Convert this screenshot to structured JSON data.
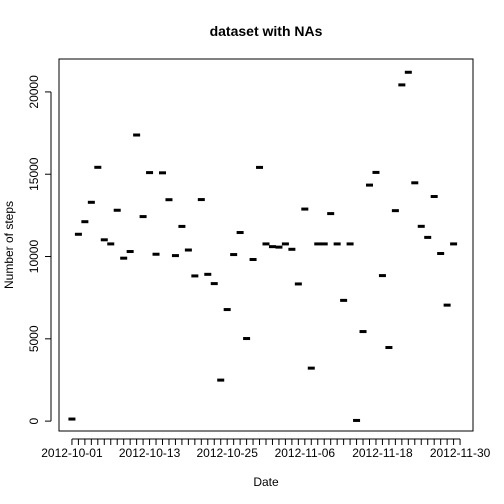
{
  "chart_data": {
    "type": "scatter",
    "title": "dataset with NAs",
    "xlabel": "Date",
    "ylabel": "Number of steps",
    "x_start_date": "2012-10-01",
    "x_end_date": "2012-11-30",
    "xlim": [
      "2012-09-29",
      "2012-12-02"
    ],
    "ylim": [
      -600,
      22000
    ],
    "x_tick_labels": [
      "2012-10-01",
      "2012-10-13",
      "2012-10-25",
      "2012-11-06",
      "2012-11-18",
      "2012-11-30"
    ],
    "y_ticks": [
      0,
      5000,
      10000,
      15000,
      20000
    ],
    "grid": false,
    "series": [
      {
        "values": [
          126,
          11352,
          12116,
          13294,
          15420,
          11015,
          10766,
          12811,
          9900,
          10304,
          17382,
          12426,
          15098,
          10139,
          15084,
          13452,
          10056,
          11829,
          10395,
          8821,
          13460,
          8918,
          8355,
          2492,
          6778,
          10119,
          11458,
          5018,
          9819,
          15414,
          10766,
          10600,
          10571,
          10766,
          10439,
          8334,
          12883,
          3219,
          10766,
          10766,
          12608,
          10765,
          7336,
          10766,
          41,
          5441,
          14339,
          15110,
          8841,
          4472,
          12787,
          20427,
          21194,
          14478,
          11834,
          11162,
          13646,
          10183,
          7047,
          10766
        ]
      }
    ]
  }
}
